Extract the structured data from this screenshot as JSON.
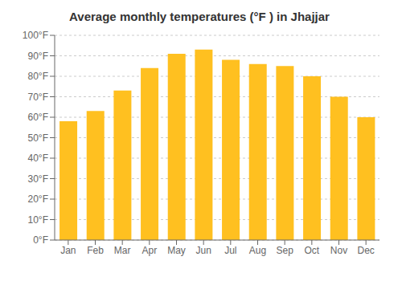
{
  "chart_data": {
    "type": "bar",
    "title": "Average monthly temperatures (°F ) in Jhajjar",
    "categories": [
      "Jan",
      "Feb",
      "Mar",
      "Apr",
      "May",
      "Jun",
      "Jul",
      "Aug",
      "Sep",
      "Oct",
      "Nov",
      "Dec"
    ],
    "values": [
      58,
      63,
      73,
      84,
      91,
      93,
      88,
      86,
      85,
      80,
      70,
      60
    ],
    "color": "#FFC020",
    "ylim": [
      0,
      100
    ],
    "yticks": [
      {
        "value": 0,
        "label": "0°F"
      },
      {
        "value": 10,
        "label": "10°F"
      },
      {
        "value": 20,
        "label": "20°F"
      },
      {
        "value": 30,
        "label": "30°F"
      },
      {
        "value": 40,
        "label": "40°F"
      },
      {
        "value": 50,
        "label": "50°F"
      },
      {
        "value": 60,
        "label": "60°F"
      },
      {
        "value": 70,
        "label": "70°F"
      },
      {
        "value": 80,
        "label": "80°F"
      },
      {
        "value": 90,
        "label": "90°F"
      },
      {
        "value": 100,
        "label": "100°F"
      }
    ],
    "grid": true
  }
}
